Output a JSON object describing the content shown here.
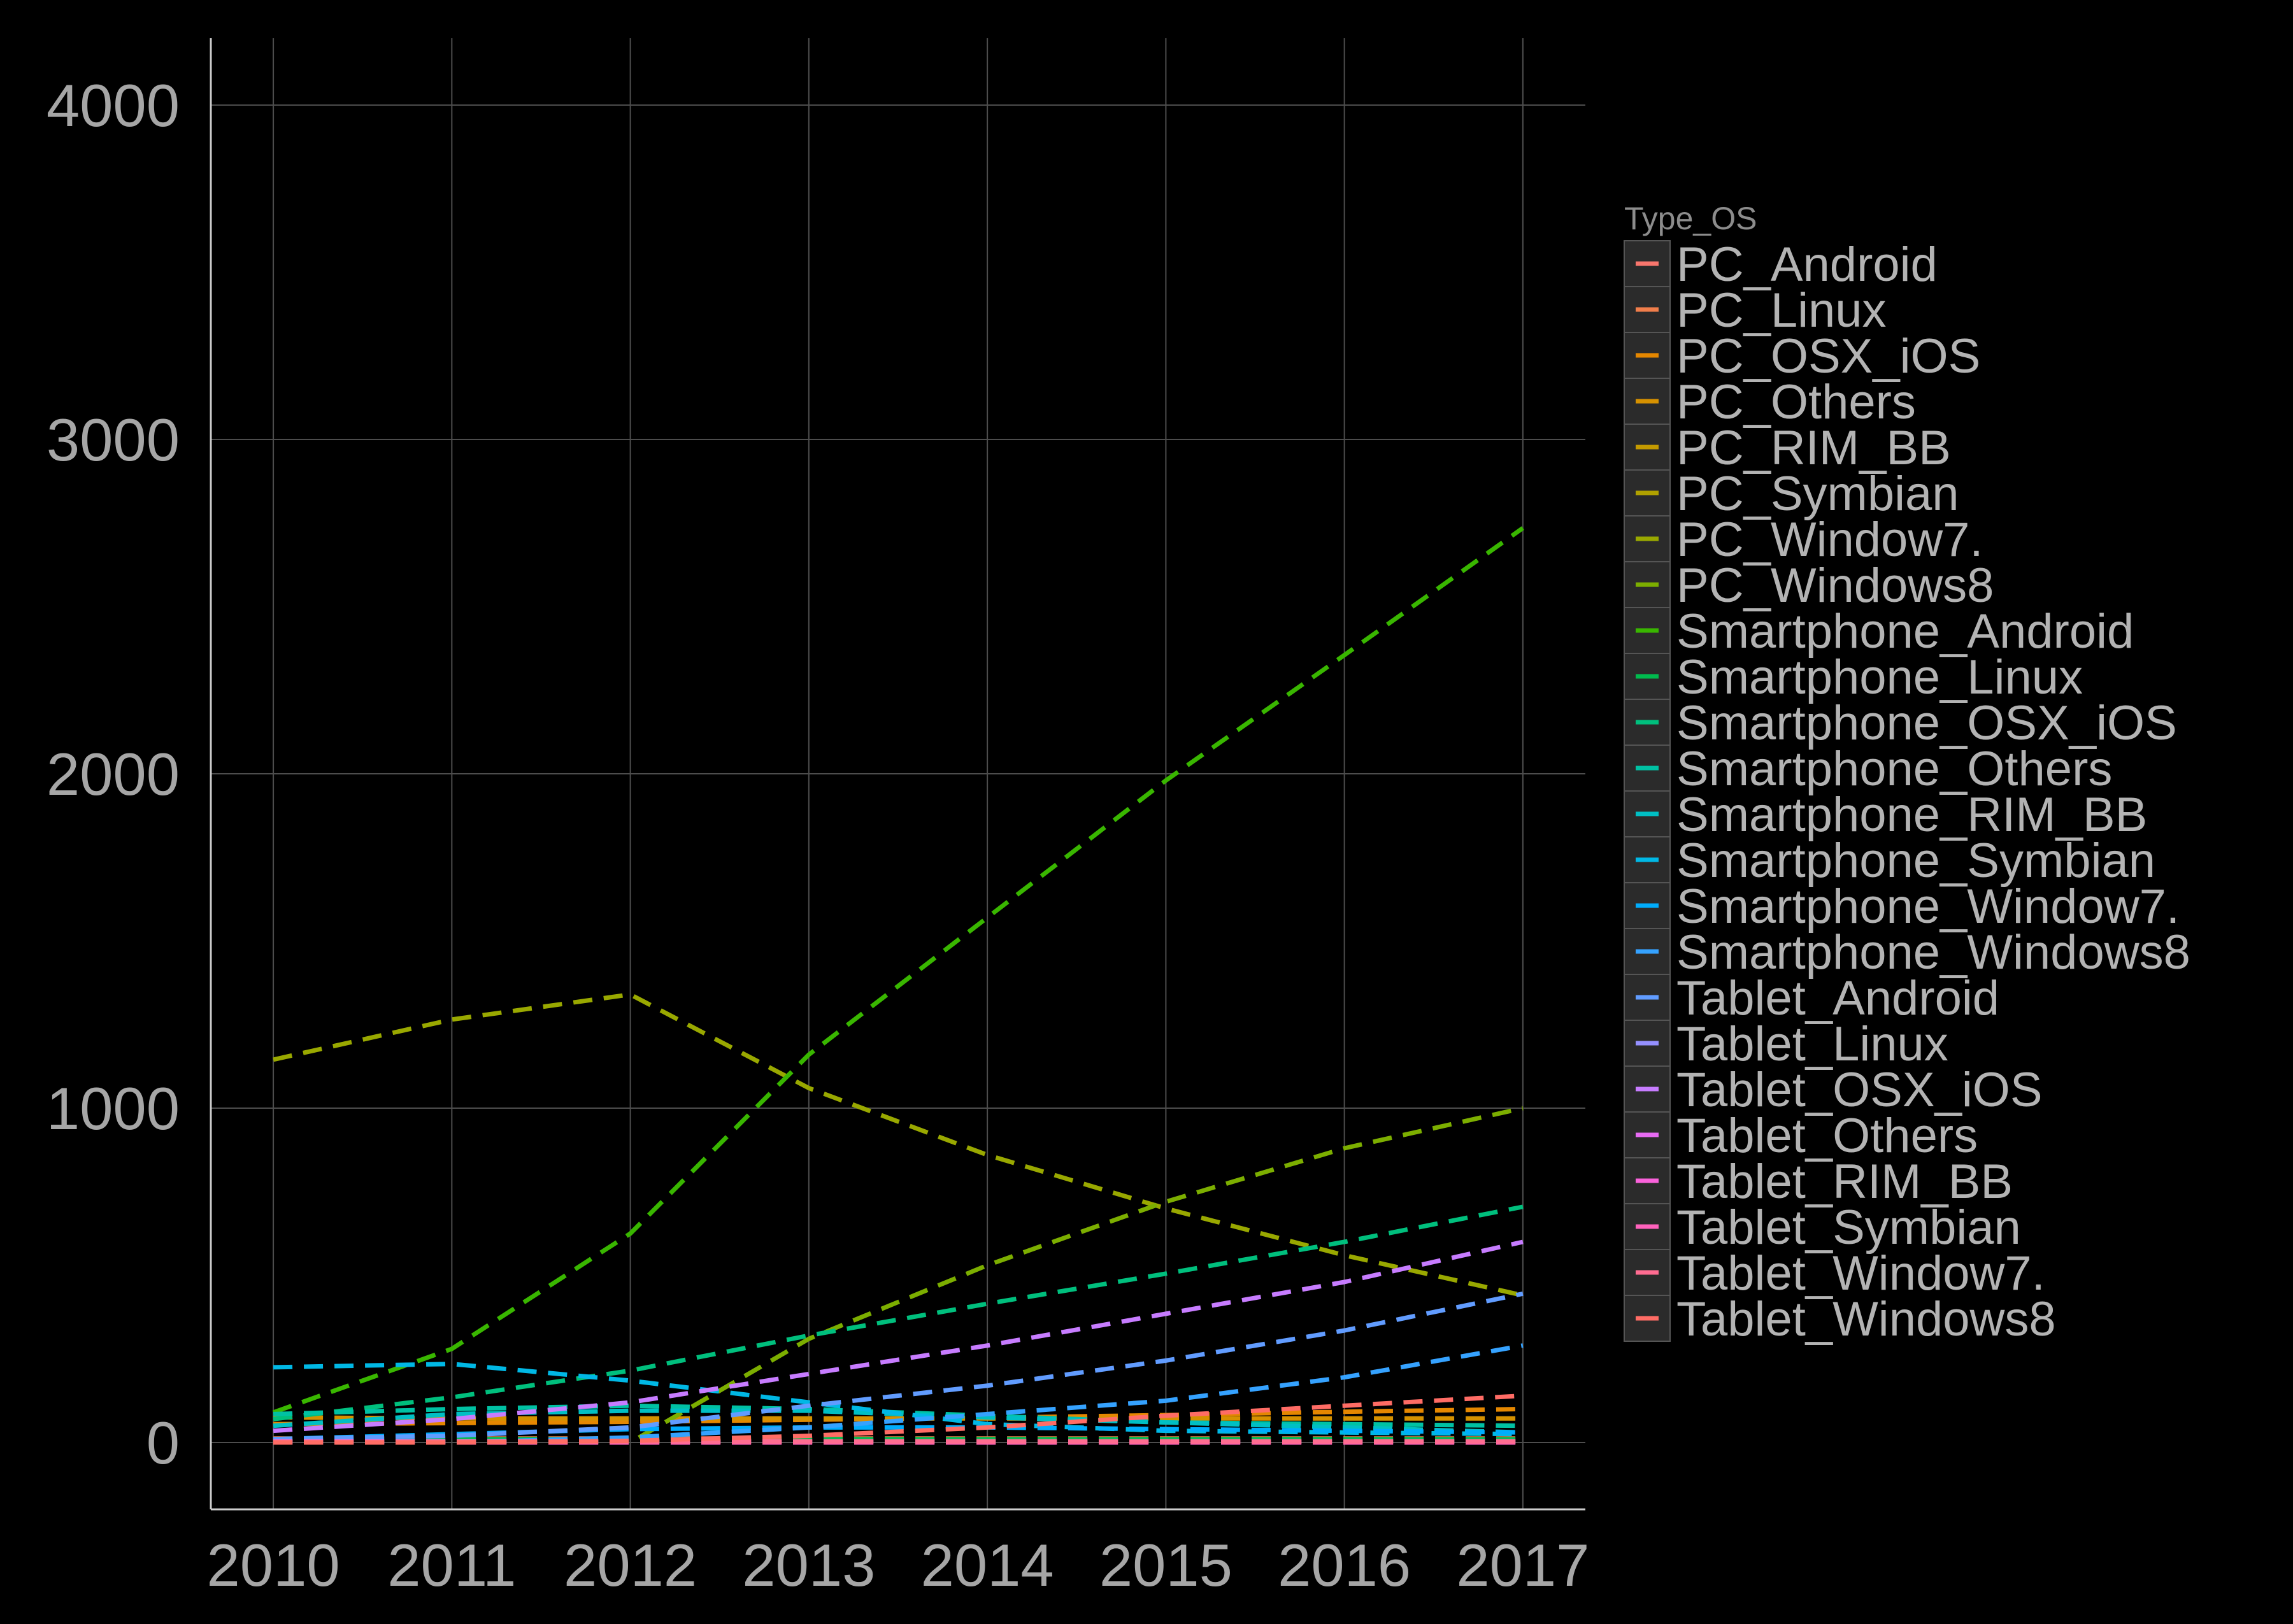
{
  "chart_data": {
    "type": "line",
    "title": "",
    "xlabel": "",
    "ylabel": "",
    "x": [
      2010,
      2011,
      2012,
      2013,
      2014,
      2015,
      2016,
      2017
    ],
    "x_ticks": [
      "2010",
      "2011",
      "2012",
      "2013",
      "2014",
      "2015",
      "2016",
      "2017"
    ],
    "y_ticks": [
      "0",
      "1000",
      "2000",
      "3000",
      "4000"
    ],
    "xlim": [
      2009.65,
      2017.35
    ],
    "ylim": [
      -200,
      4200
    ],
    "grid": true,
    "line_style": "dashed",
    "legend": {
      "title": "Type_OS",
      "position": "right"
    },
    "series": [
      {
        "name": "PC_Android",
        "color": "#F8766D",
        "values": [
          5,
          5,
          6,
          6,
          6,
          5,
          5,
          5
        ]
      },
      {
        "name": "PC_Linux",
        "color": "#F07E4B",
        "values": [
          12,
          12,
          12,
          12,
          12,
          12,
          12,
          12
        ]
      },
      {
        "name": "PC_OSX_iOS",
        "color": "#E58700",
        "values": [
          55,
          58,
          62,
          68,
          74,
          82,
          92,
          100
        ]
      },
      {
        "name": "PC_Others",
        "color": "#D69100",
        "values": [
          75,
          72,
          72,
          72,
          72,
          72,
          72,
          72
        ]
      },
      {
        "name": "PC_RIM_BB",
        "color": "#C49A00",
        "values": [
          3,
          3,
          3,
          3,
          3,
          3,
          3,
          3
        ]
      },
      {
        "name": "PC_Symbian",
        "color": "#B0A100",
        "values": [
          2,
          2,
          2,
          2,
          2,
          2,
          2,
          2
        ]
      },
      {
        "name": "PC_Window7.",
        "color": "#99A800",
        "values": [
          1145,
          1265,
          1340,
          1060,
          860,
          700,
          560,
          440
        ]
      },
      {
        "name": "PC_Windows8",
        "color": "#7CAE00",
        "values": [
          0,
          0,
          0,
          310,
          530,
          720,
          880,
          1000
        ]
      },
      {
        "name": "Smartphone_Android",
        "color": "#39B600",
        "values": [
          90,
          280,
          625,
          1160,
          1570,
          1980,
          2355,
          2735
        ]
      },
      {
        "name": "Smartphone_Linux",
        "color": "#00BB4E",
        "values": [
          10,
          10,
          10,
          10,
          10,
          10,
          10,
          10
        ]
      },
      {
        "name": "Smartphone_OSX_iOS",
        "color": "#00BF7D",
        "values": [
          70,
          135,
          215,
          320,
          415,
          505,
          600,
          705
        ]
      },
      {
        "name": "Smartphone_Others",
        "color": "#00C1A3",
        "values": [
          85,
          100,
          110,
          100,
          80,
          60,
          55,
          50
        ]
      },
      {
        "name": "Smartphone_RIM_BB",
        "color": "#00BFC4",
        "values": [
          50,
          85,
          95,
          95,
          75,
          60,
          45,
          30
        ]
      },
      {
        "name": "Smartphone_Symbian",
        "color": "#00B8E5",
        "values": [
          225,
          235,
          185,
          120,
          55,
          35,
          30,
          25
        ]
      },
      {
        "name": "Smartphone_Window7.",
        "color": "#00ACFC",
        "values": [
          10,
          25,
          40,
          45,
          45,
          40,
          35,
          30
        ]
      },
      {
        "name": "Smartphone_Windows8",
        "color": "#35A2FF",
        "values": [
          0,
          0,
          15,
          45,
          85,
          125,
          195,
          290
        ]
      },
      {
        "name": "Tablet_Android",
        "color": "#619CFF",
        "values": [
          10,
          20,
          45,
          110,
          170,
          245,
          335,
          445
        ]
      },
      {
        "name": "Tablet_Linux",
        "color": "#9590FF",
        "values": [
          2,
          2,
          2,
          2,
          2,
          2,
          2,
          2
        ]
      },
      {
        "name": "Tablet_OSX_iOS",
        "color": "#C77CFF",
        "values": [
          35,
          70,
          120,
          205,
          290,
          385,
          480,
          600
        ]
      },
      {
        "name": "Tablet_Others",
        "color": "#E76BF3",
        "values": [
          3,
          3,
          3,
          3,
          3,
          3,
          3,
          3
        ]
      },
      {
        "name": "Tablet_RIM_BB",
        "color": "#FA62DB",
        "values": [
          0,
          0,
          0,
          0,
          0,
          0,
          0,
          0
        ]
      },
      {
        "name": "Tablet_Symbian",
        "color": "#FF62BC",
        "values": [
          0,
          0,
          0,
          0,
          0,
          0,
          0,
          0
        ]
      },
      {
        "name": "Tablet_Window7.",
        "color": "#FF6C91",
        "values": [
          2,
          2,
          3,
          3,
          3,
          3,
          3,
          3
        ]
      },
      {
        "name": "Tablet_Windows8",
        "color": "#FF6C65",
        "values": [
          0,
          0,
          5,
          20,
          45,
          80,
          110,
          140
        ]
      }
    ]
  }
}
